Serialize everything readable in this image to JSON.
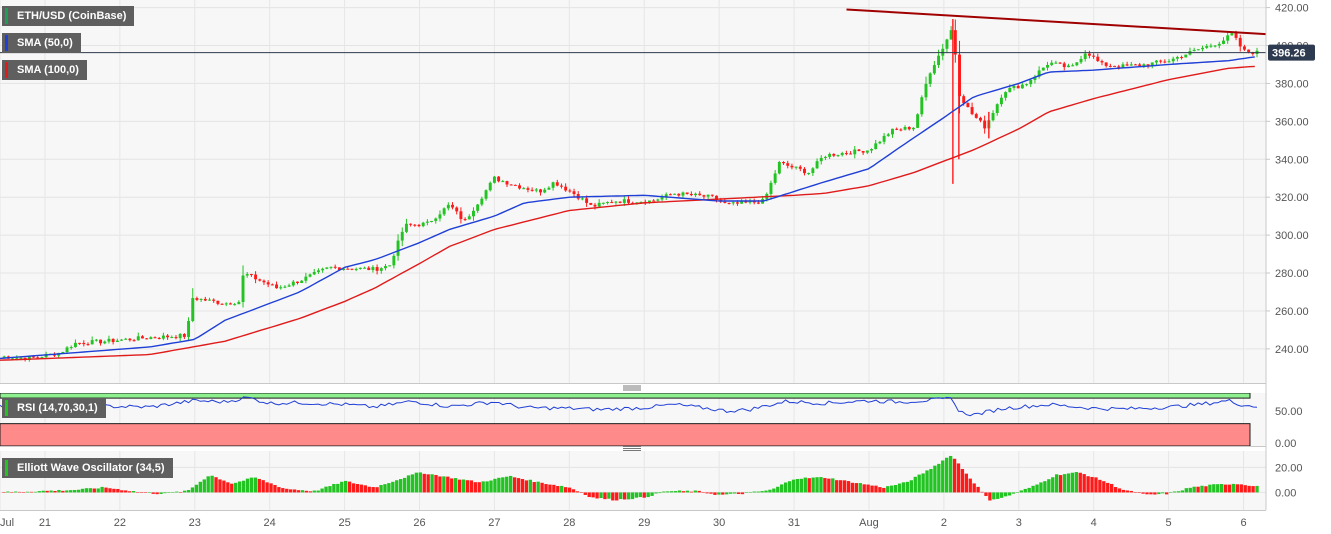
{
  "colors": {
    "up": "#22c322",
    "down": "#ff1a1a",
    "sma50": "#1f3fd6",
    "sma100": "#e01b1b",
    "trendline": "#a00000",
    "rsi": "#1f3fd6",
    "rsi_overbought_fill": "#8ef08e",
    "rsi_oversold_fill": "#ff8a8a",
    "price_label_bg": "#2d3a4f"
  },
  "legend": {
    "price": "ETH/USD (CoinBase)",
    "sma50": "SMA (50,0)",
    "sma100": "SMA (100,0)",
    "rsi": "RSI (14,70,30,1)",
    "ewo": "Elliott Wave Oscillator (34,5)"
  },
  "current_price_label": "396.26",
  "chart_data": [
    {
      "type": "candlestick",
      "title": "ETH/USD (CoinBase)",
      "ylim": [
        222,
        424
      ],
      "yticks": [
        240,
        260,
        280,
        300,
        320,
        340,
        360,
        380,
        400,
        420
      ],
      "ytick_labels": [
        "240.00",
        "260.00",
        "280.00",
        "300.00",
        "320.00",
        "340.00",
        "360.00",
        "380.00",
        "400.00",
        "420.00"
      ],
      "x_labels": [
        "Jul",
        "21",
        "22",
        "23",
        "24",
        "25",
        "26",
        "27",
        "28",
        "29",
        "30",
        "31",
        "Aug",
        "2",
        "3",
        "4",
        "5",
        "6"
      ],
      "x_positions": [
        0.0,
        0.6,
        1.6,
        2.6,
        3.6,
        4.6,
        5.6,
        6.6,
        7.6,
        8.6,
        9.6,
        10.6,
        11.6,
        12.6,
        13.6,
        14.6,
        15.6,
        16.6
      ],
      "x_range": [
        0,
        16.9
      ],
      "anchors_close": [
        [
          0,
          236
        ],
        [
          0.4,
          235
        ],
        [
          0.8,
          238
        ],
        [
          1.0,
          243
        ],
        [
          1.4,
          244
        ],
        [
          2.0,
          246
        ],
        [
          2.5,
          247
        ],
        [
          2.55,
          267
        ],
        [
          3.0,
          264
        ],
        [
          3.2,
          265
        ],
        [
          3.25,
          280
        ],
        [
          3.7,
          272
        ],
        [
          4.0,
          276
        ],
        [
          4.4,
          283
        ],
        [
          5.0,
          282
        ],
        [
          5.2,
          284
        ],
        [
          5.4,
          305
        ],
        [
          5.7,
          306
        ],
        [
          6.0,
          316
        ],
        [
          6.2,
          307
        ],
        [
          6.6,
          330
        ],
        [
          6.9,
          326
        ],
        [
          7.2,
          323
        ],
        [
          7.4,
          328
        ],
        [
          7.7,
          321
        ],
        [
          7.9,
          315
        ],
        [
          8.2,
          318
        ],
        [
          8.7,
          318
        ],
        [
          9.0,
          322
        ],
        [
          9.5,
          320
        ],
        [
          9.7,
          316
        ],
        [
          10.0,
          317
        ],
        [
          10.2,
          318
        ],
        [
          10.4,
          338
        ],
        [
          10.8,
          333
        ],
        [
          11.0,
          342
        ],
        [
          11.6,
          345
        ],
        [
          11.9,
          355
        ],
        [
          12.2,
          357
        ],
        [
          12.4,
          385
        ],
        [
          12.6,
          400
        ],
        [
          12.72,
          410
        ],
        [
          12.8,
          375
        ],
        [
          12.95,
          365
        ],
        [
          13.15,
          357
        ],
        [
          13.4,
          376
        ],
        [
          13.7,
          380
        ],
        [
          14.0,
          391
        ],
        [
          14.3,
          388
        ],
        [
          14.5,
          397
        ],
        [
          14.7,
          390
        ],
        [
          15.0,
          389
        ],
        [
          15.3,
          390
        ],
        [
          15.6,
          392
        ],
        [
          16.0,
          398
        ],
        [
          16.3,
          402
        ],
        [
          16.45,
          406
        ],
        [
          16.6,
          397
        ],
        [
          16.78,
          396.3
        ]
      ],
      "sma50_anchors": [
        [
          0,
          235
        ],
        [
          2.0,
          241
        ],
        [
          2.6,
          245
        ],
        [
          3.0,
          255
        ],
        [
          4.0,
          270
        ],
        [
          4.6,
          283
        ],
        [
          5.0,
          287
        ],
        [
          5.6,
          296
        ],
        [
          6.0,
          303
        ],
        [
          6.6,
          310
        ],
        [
          7.0,
          317
        ],
        [
          7.6,
          320
        ],
        [
          8.6,
          321
        ],
        [
          9.6,
          318
        ],
        [
          10.2,
          318
        ],
        [
          10.6,
          323
        ],
        [
          11.0,
          328
        ],
        [
          11.6,
          335
        ],
        [
          12.0,
          346
        ],
        [
          12.6,
          362
        ],
        [
          13.0,
          373
        ],
        [
          13.6,
          380
        ],
        [
          14.0,
          386
        ],
        [
          14.6,
          387
        ],
        [
          15.6,
          390
        ],
        [
          16.4,
          392
        ],
        [
          16.75,
          394
        ]
      ],
      "sma100_anchors": [
        [
          0,
          234
        ],
        [
          2.0,
          237
        ],
        [
          3.0,
          244
        ],
        [
          4.0,
          256
        ],
        [
          4.6,
          265
        ],
        [
          5.0,
          272
        ],
        [
          5.6,
          285
        ],
        [
          6.0,
          294
        ],
        [
          6.6,
          303
        ],
        [
          7.0,
          307
        ],
        [
          7.6,
          313
        ],
        [
          8.6,
          317
        ],
        [
          9.6,
          319
        ],
        [
          10.6,
          321
        ],
        [
          11.0,
          322
        ],
        [
          11.6,
          326
        ],
        [
          12.2,
          333
        ],
        [
          12.6,
          339
        ],
        [
          13.0,
          345
        ],
        [
          13.6,
          356
        ],
        [
          14.0,
          365
        ],
        [
          14.6,
          372
        ],
        [
          15.6,
          382
        ],
        [
          16.4,
          388
        ],
        [
          16.75,
          389
        ]
      ],
      "trendline": {
        "start": [
          11.3,
          419
        ],
        "end": [
          16.9,
          406
        ]
      },
      "events": [
        {
          "x": 12.72,
          "high": 414,
          "low": 327
        },
        {
          "x": 12.8,
          "high": 380,
          "low": 340
        },
        {
          "x": 13.2,
          "high": 365,
          "low": 351
        }
      ]
    },
    {
      "type": "line",
      "title": "RSI (14,70,30,1)",
      "ylim": [
        -5,
        78
      ],
      "yticks": [
        0,
        50
      ],
      "ytick_labels": [
        "0.00",
        "50.00"
      ],
      "overbought": 70,
      "oversold": 30,
      "series": [
        {
          "name": "RSI",
          "anchors": [
            [
              0,
              57
            ],
            [
              0.5,
              55
            ],
            [
              1.0,
              58
            ],
            [
              1.5,
              57
            ],
            [
              2.0,
              56
            ],
            [
              2.6,
              66
            ],
            [
              3.0,
              64
            ],
            [
              3.3,
              71
            ],
            [
              3.6,
              62
            ],
            [
              4.0,
              63
            ],
            [
              4.6,
              60
            ],
            [
              5.0,
              56
            ],
            [
              5.5,
              65
            ],
            [
              6.0,
              57
            ],
            [
              6.6,
              64
            ],
            [
              7.0,
              55
            ],
            [
              7.6,
              54
            ],
            [
              8.0,
              52
            ],
            [
              8.6,
              55
            ],
            [
              9.0,
              60
            ],
            [
              9.5,
              53
            ],
            [
              9.7,
              50
            ],
            [
              10.0,
              52
            ],
            [
              10.5,
              65
            ],
            [
              11.0,
              62
            ],
            [
              11.6,
              66
            ],
            [
              12.0,
              64
            ],
            [
              12.6,
              68
            ],
            [
              12.72,
              70
            ],
            [
              12.8,
              48
            ],
            [
              13.0,
              44
            ],
            [
              13.4,
              54
            ],
            [
              14.0,
              60
            ],
            [
              14.6,
              54
            ],
            [
              15.0,
              53
            ],
            [
              15.6,
              56
            ],
            [
              16.0,
              60
            ],
            [
              16.4,
              66
            ],
            [
              16.6,
              59
            ],
            [
              16.78,
              57
            ]
          ]
        }
      ]
    },
    {
      "type": "bar",
      "title": "Elliott Wave Oscillator (34,5)",
      "ylim": [
        -14,
        33
      ],
      "yticks": [
        0,
        20
      ],
      "ytick_labels": [
        "0.00",
        "20.00"
      ],
      "anchors": [
        [
          0,
          0
        ],
        [
          1.0,
          2
        ],
        [
          1.4,
          4
        ],
        [
          1.9,
          0
        ],
        [
          2.1,
          -1
        ],
        [
          2.5,
          1
        ],
        [
          2.8,
          14
        ],
        [
          3.1,
          7
        ],
        [
          3.4,
          12
        ],
        [
          3.8,
          3
        ],
        [
          4.2,
          1
        ],
        [
          4.6,
          9
        ],
        [
          5.0,
          4
        ],
        [
          5.3,
          10
        ],
        [
          5.6,
          16
        ],
        [
          6.0,
          12
        ],
        [
          6.4,
          8
        ],
        [
          6.8,
          13
        ],
        [
          7.2,
          8
        ],
        [
          7.6,
          4
        ],
        [
          7.9,
          -4
        ],
        [
          8.2,
          -6
        ],
        [
          8.6,
          -4
        ],
        [
          8.9,
          1
        ],
        [
          9.3,
          1
        ],
        [
          9.6,
          -2
        ],
        [
          9.9,
          -1
        ],
        [
          10.3,
          2
        ],
        [
          10.6,
          11
        ],
        [
          11.0,
          12
        ],
        [
          11.4,
          8
        ],
        [
          11.8,
          4
        ],
        [
          12.1,
          8
        ],
        [
          12.4,
          18
        ],
        [
          12.7,
          30
        ],
        [
          12.9,
          15
        ],
        [
          13.2,
          -6
        ],
        [
          13.4,
          -4
        ],
        [
          13.8,
          5
        ],
        [
          14.1,
          14
        ],
        [
          14.4,
          16
        ],
        [
          14.7,
          10
        ],
        [
          15.0,
          2
        ],
        [
          15.3,
          -2
        ],
        [
          15.6,
          -1
        ],
        [
          15.9,
          4
        ],
        [
          16.2,
          6
        ],
        [
          16.5,
          7
        ],
        [
          16.78,
          5
        ]
      ]
    }
  ]
}
